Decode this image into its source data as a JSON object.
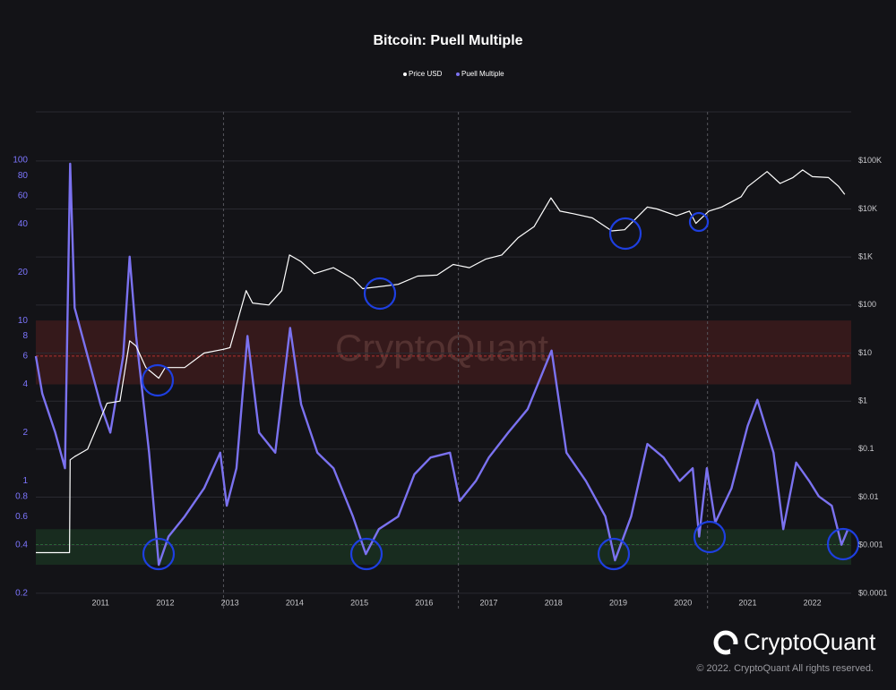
{
  "chart_data": {
    "type": "line",
    "title": "Bitcoin: Puell Multiple",
    "watermark": "CryptoQuant",
    "legend": "top",
    "log_scale": true,
    "grid": true,
    "xlim": [
      2010.0,
      2022.6
    ],
    "xticks": [
      2011,
      2012,
      2013,
      2014,
      2015,
      2016,
      2017,
      2018,
      2019,
      2020,
      2021,
      2022
    ],
    "ylim": [
      0.16,
      200
    ],
    "yticks": [
      0.2,
      0.4,
      0.6,
      0.8,
      1,
      2,
      4,
      6,
      8,
      10,
      20,
      40,
      60,
      80,
      100
    ],
    "y2lim": [
      4.8e-05,
      1050000
    ],
    "y2ticks": [
      {
        "value": 100000,
        "label": "$100K"
      },
      {
        "value": 10000,
        "label": "$10K"
      },
      {
        "value": 1000,
        "label": "$1K"
      },
      {
        "value": 100,
        "label": "$100"
      },
      {
        "value": 10,
        "label": "$10"
      },
      {
        "value": 1,
        "label": "$1"
      },
      {
        "value": 0.1,
        "label": "$0.1"
      },
      {
        "value": 0.01,
        "label": "$0.01"
      },
      {
        "value": 0.001,
        "label": "$0.001"
      },
      {
        "value": 0.0001,
        "label": "$0.0001"
      }
    ],
    "bands": [
      {
        "from": 4,
        "to": 10,
        "line": 6,
        "color": "#b0302f"
      },
      {
        "from": 0.3,
        "to": 0.5,
        "line": 0.4,
        "color": "#2f8a3f"
      }
    ],
    "halvings": [
      2012.9,
      2016.53,
      2020.38
    ],
    "series": [
      {
        "name": "Price USD",
        "color": "#ffffff",
        "axis": "y2",
        "x": [
          2010.0,
          2010.52,
          2010.53,
          2010.6,
          2010.8,
          2010.95,
          2011.1,
          2011.3,
          2011.45,
          2011.55,
          2011.7,
          2011.9,
          2012.0,
          2012.3,
          2012.6,
          2012.9,
          2013.0,
          2013.25,
          2013.35,
          2013.6,
          2013.8,
          2013.92,
          2014.1,
          2014.3,
          2014.6,
          2014.9,
          2015.05,
          2015.3,
          2015.6,
          2015.9,
          2016.2,
          2016.45,
          2016.7,
          2016.95,
          2017.2,
          2017.45,
          2017.7,
          2017.96,
          2018.1,
          2018.3,
          2018.6,
          2018.9,
          2019.1,
          2019.45,
          2019.6,
          2019.9,
          2020.1,
          2020.2,
          2020.4,
          2020.6,
          2020.9,
          2021.0,
          2021.3,
          2021.5,
          2021.7,
          2021.85,
          2022.0,
          2022.25,
          2022.4,
          2022.5
        ],
        "values": [
          0.0007,
          0.0007,
          0.06,
          0.07,
          0.1,
          0.3,
          0.9,
          1,
          18,
          14,
          5,
          3,
          5,
          5,
          10,
          12,
          13,
          200,
          110,
          100,
          200,
          1100,
          800,
          450,
          600,
          350,
          220,
          240,
          270,
          400,
          420,
          700,
          600,
          900,
          1100,
          2500,
          4300,
          17000,
          9000,
          8000,
          6500,
          3500,
          3700,
          11000,
          10000,
          7200,
          9000,
          5000,
          9000,
          11000,
          18000,
          29000,
          60000,
          34000,
          45000,
          65000,
          47000,
          45000,
          30000,
          20000
        ]
      },
      {
        "name": "Puell Multiple",
        "color": "#7b72f0",
        "x": [
          2010.0,
          2010.1,
          2010.3,
          2010.45,
          2010.53,
          2010.6,
          2010.8,
          2011.0,
          2011.15,
          2011.35,
          2011.45,
          2011.55,
          2011.75,
          2011.9,
          2012.05,
          2012.3,
          2012.6,
          2012.85,
          2012.95,
          2013.1,
          2013.27,
          2013.45,
          2013.7,
          2013.93,
          2014.1,
          2014.35,
          2014.6,
          2014.9,
          2015.1,
          2015.3,
          2015.6,
          2015.85,
          2016.1,
          2016.4,
          2016.55,
          2016.8,
          2017.0,
          2017.3,
          2017.6,
          2017.97,
          2018.2,
          2018.5,
          2018.8,
          2018.95,
          2019.2,
          2019.45,
          2019.7,
          2019.95,
          2020.15,
          2020.25,
          2020.37,
          2020.5,
          2020.75,
          2021.0,
          2021.15,
          2021.4,
          2021.55,
          2021.75,
          2021.95,
          2022.1,
          2022.3,
          2022.45,
          2022.55
        ],
        "values": [
          6,
          3.5,
          2,
          1.2,
          95,
          12,
          6,
          3,
          2,
          6,
          25,
          8,
          1.5,
          0.3,
          0.45,
          0.6,
          0.9,
          1.5,
          0.7,
          1.2,
          8,
          2,
          1.5,
          9,
          3,
          1.5,
          1.2,
          0.6,
          0.35,
          0.5,
          0.6,
          1.1,
          1.4,
          1.5,
          0.75,
          1,
          1.4,
          2,
          2.8,
          6.5,
          1.5,
          1,
          0.6,
          0.32,
          0.6,
          1.7,
          1.4,
          1,
          1.2,
          0.45,
          1.2,
          0.55,
          0.9,
          2.2,
          3.2,
          1.5,
          0.5,
          1.3,
          1,
          0.8,
          0.7,
          0.4,
          0.5
        ]
      }
    ]
  },
  "footer": {
    "brand": "CryptoQuant",
    "copyright": "© 2022. CryptoQuant All rights reserved."
  }
}
